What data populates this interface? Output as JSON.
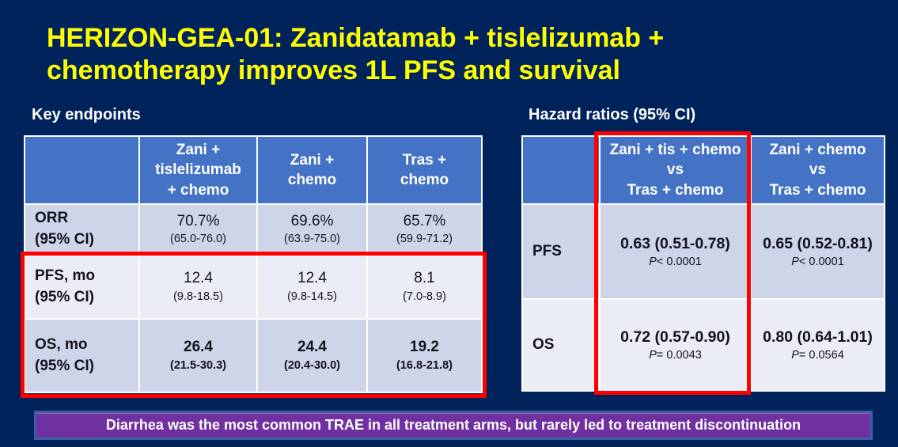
{
  "slide": {
    "title": "HERIZON-GEA-01: Zanidatamab + tislelizumab +\nchemotherapy improves 1L PFS and survival"
  },
  "key_endpoints": {
    "heading": "Key endpoints",
    "columns": [
      "",
      "Zani +\ntislelizumab\n+ chemo",
      "Zani +\nchemo",
      "Tras +\nchemo"
    ],
    "rows": [
      {
        "label": "ORR\n(95% CI)",
        "values": [
          "70.7%",
          "69.6%",
          "65.7%"
        ],
        "cis": [
          "(65.0-76.0)",
          "(63.9-75.0)",
          "(59.9-71.2)"
        ]
      },
      {
        "label": "PFS, mo\n(95% CI)",
        "values": [
          "12.4",
          "12.4",
          "8.1"
        ],
        "cis": [
          "(9.8-18.5)",
          "(9.8-14.5)",
          "(7.0-8.9)"
        ]
      },
      {
        "label": "OS, mo\n(95% CI)",
        "values": [
          "26.4",
          "24.4",
          "19.2"
        ],
        "cis": [
          "(21.5-30.3)",
          "(20.4-30.0)",
          "(16.8-21.8)"
        ]
      }
    ]
  },
  "hazard_ratios": {
    "heading": "Hazard ratios (95% CI)",
    "p_symbol": "P",
    "columns": [
      "",
      "Zani + tis + chemo\nvs\nTras + chemo",
      "Zani + chemo\nvs\nTras + chemo"
    ],
    "rows": [
      {
        "label": "PFS",
        "values": [
          "0.63 (0.51-0.78)",
          "0.65 (0.52-0.81)"
        ],
        "p": [
          "< 0.0001",
          "< 0.0001"
        ]
      },
      {
        "label": "OS",
        "values": [
          "0.72 (0.57-0.90)",
          "0.80 (0.64-1.01)"
        ],
        "p": [
          "= 0.0043",
          "= 0.0564"
        ]
      }
    ]
  },
  "banner": {
    "text": "Diarrhea was the most common TRAE in all treatment arms, but rarely led to treatment discontinuation"
  },
  "colors": {
    "background": "#00235c",
    "title_yellow": "#ffff00",
    "table_header_blue": "#4472c4",
    "row_dark_lavender": "#cfd5e8",
    "row_light_lavender": "#eaecf6",
    "highlight_red": "#fe0000",
    "banner_purple": "#7030a0",
    "banner_border_blue": "#3a5fa8",
    "text_dark": "#13131f",
    "text_white": "#ffffff"
  }
}
